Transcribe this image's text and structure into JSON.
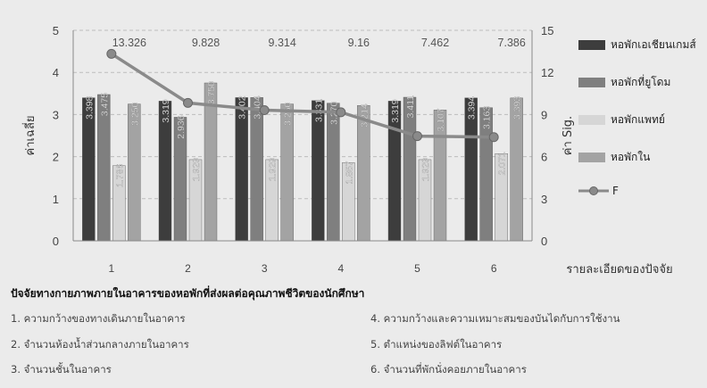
{
  "chart_data": {
    "type": "bar",
    "categories": [
      "1",
      "2",
      "3",
      "4",
      "5",
      "6"
    ],
    "series": [
      {
        "name": "หอพักเอเชียนเกมส์",
        "values": [
          3.398,
          3.319,
          3.402,
          3.331,
          3.319,
          3.394
        ],
        "labels": [
          "3.398",
          "3.319",
          "3.402",
          "3.331",
          "3.319",
          "3.394"
        ],
        "color": "#3d3d3d"
      },
      {
        "name": "หอพักที่ยูโดม",
        "values": [
          3.475,
          2.936,
          3.404,
          3.27,
          3.411,
          3.163
        ],
        "labels": [
          "3.475",
          "2.936",
          "3.404",
          "3.270",
          "3.411",
          "3.163"
        ],
        "color": "#7f7f7f"
      },
      {
        "name": "หอพักแพทย์",
        "values": [
          1.786,
          1.929,
          1.929,
          1.857,
          1.929,
          2.071
        ],
        "labels": [
          "1.786",
          "1.929",
          "1.929",
          "1.857",
          "1.929",
          "2.071"
        ],
        "color": "#d6d6d6"
      },
      {
        "name": "หอพักใน",
        "values": [
          3.25,
          3.75,
          3.25,
          3.214,
          3.107,
          3.393
        ],
        "labels": [
          "3.250",
          "3.750",
          "3.250",
          "3.214",
          "3.107",
          "3.393"
        ],
        "color": "#a3a3a3"
      }
    ],
    "line": {
      "name": "F",
      "values": [
        13.326,
        9.828,
        9.314,
        9.16,
        7.462,
        7.386
      ],
      "labels": [
        "13.326",
        "9.828",
        "9.314",
        "9.16",
        "7.462",
        "7.386"
      ],
      "color": "#8a8a8a"
    },
    "ylim": [
      0,
      5
    ],
    "yticks": [
      "0",
      "1",
      "2",
      "3",
      "4",
      "5"
    ],
    "y2lim": [
      0,
      15
    ],
    "y2ticks": [
      "0",
      "3",
      "6",
      "9",
      "12",
      "15"
    ],
    "ylabel": "ค่าเฉลี่ย",
    "y2label": "ค่า Sig.",
    "xlabel": "รายละเอียดของปัจจัย",
    "grid": true,
    "legend": "right"
  },
  "footer": {
    "title": "ปัจจัยทางกายภาพภายในอาคารของหอพักที่ส่งผลต่อคุณภาพชีวิตของนักศึกษา",
    "items": [
      "1. ความกว้างของทางเดินภายในอาคาร",
      "2. จำนวนห้องน้ำส่วนกลางภายในอาคาร",
      "3. จำนวนชั้นในอาคาร",
      "4. ความกว้างและความเหมาะสมของบันไดกับการใช้งาน",
      "5. ตำแหน่งของลิฟต์ในอาคาร",
      "6. จำนวนที่พักนั่งคอยภายในอาคาร"
    ]
  }
}
